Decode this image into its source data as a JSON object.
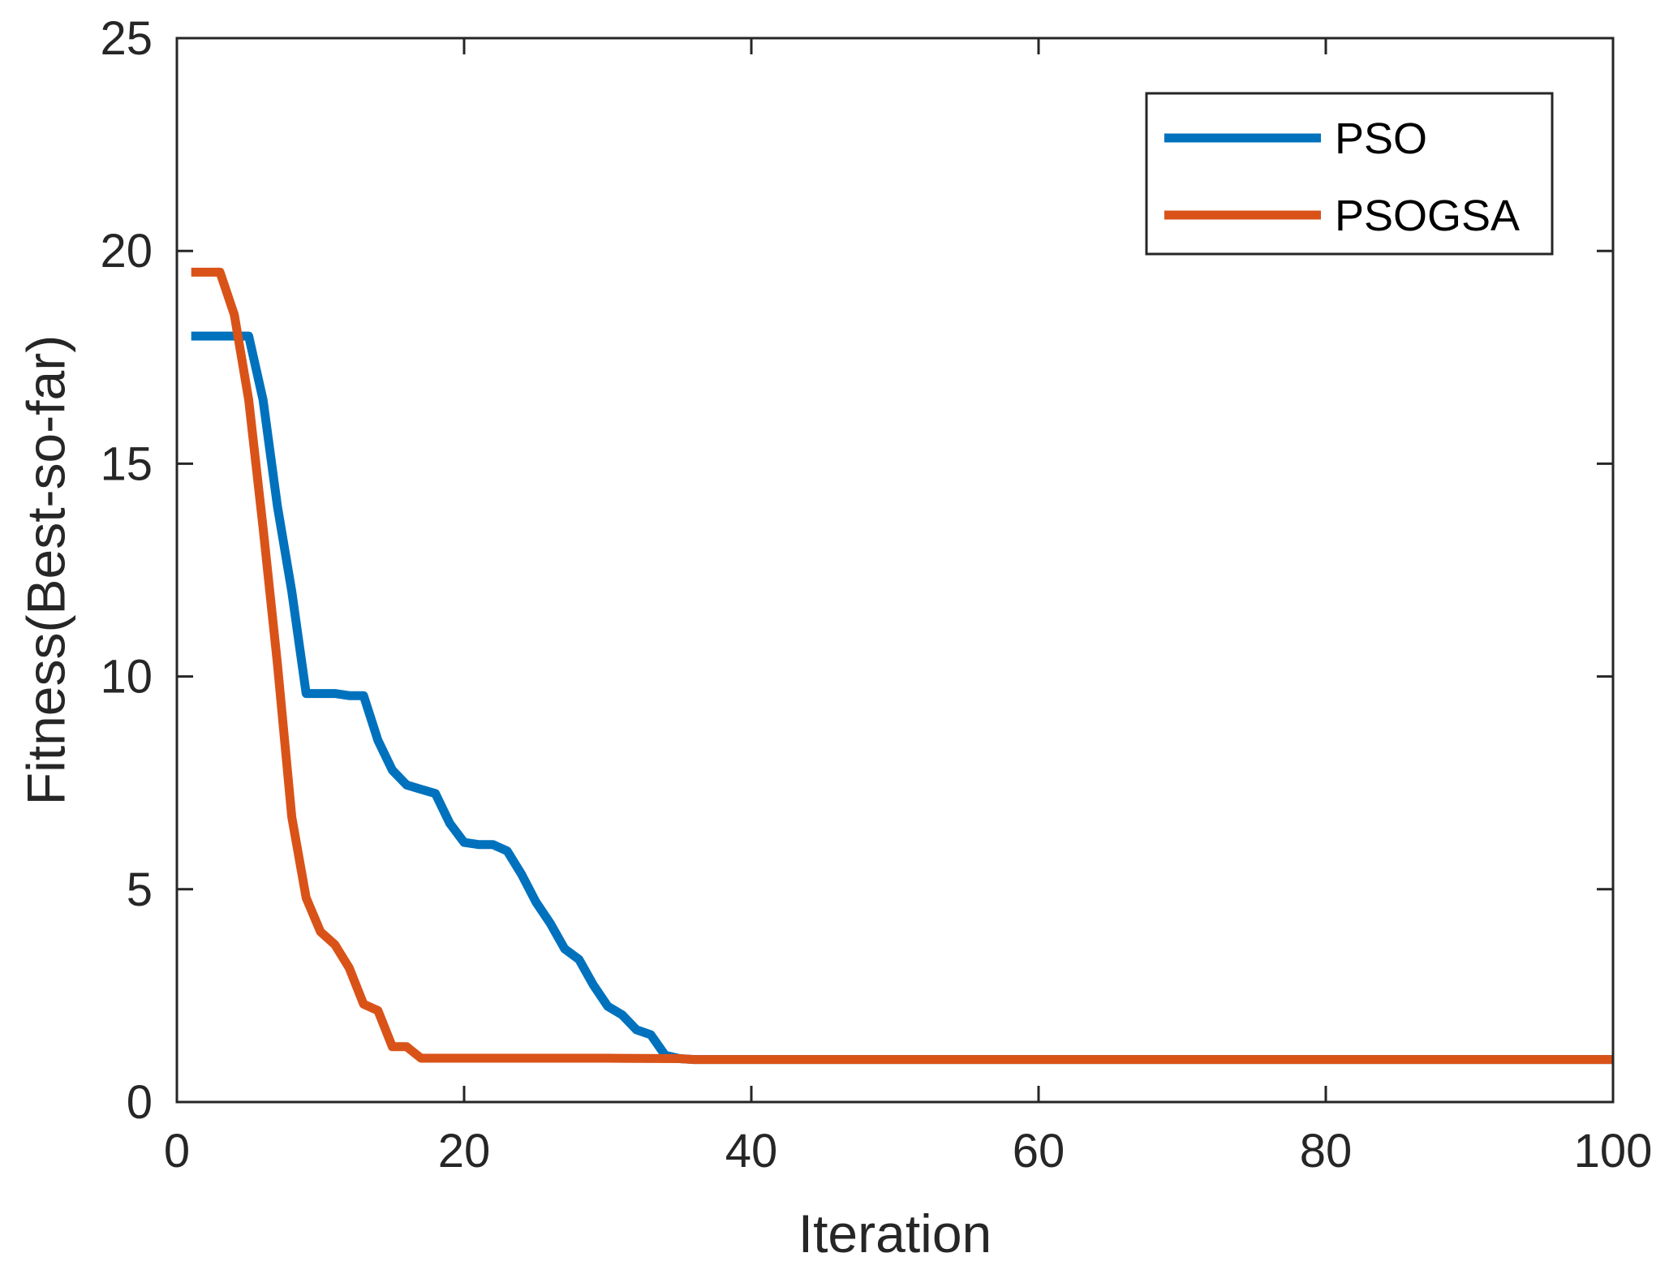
{
  "chart_data": {
    "type": "line",
    "title": "",
    "xlabel": "Iteration",
    "ylabel": "Fitness(Best-so-far)",
    "xlim": [
      0,
      100
    ],
    "ylim": [
      0,
      25
    ],
    "xticks": [
      0,
      20,
      40,
      60,
      80,
      100
    ],
    "yticks": [
      0,
      5,
      10,
      15,
      20,
      25
    ],
    "xtick_labels": [
      "0",
      "20",
      "40",
      "60",
      "80",
      "100"
    ],
    "ytick_labels": [
      "0",
      "5",
      "10",
      "15",
      "20",
      "25"
    ],
    "grid": false,
    "legend_position": "top-right",
    "series": [
      {
        "name": "PSO",
        "color": "#0072BD",
        "x": [
          1,
          2,
          3,
          4,
          5,
          6,
          7,
          8,
          9,
          10,
          11,
          12,
          13,
          14,
          15,
          16,
          17,
          18,
          19,
          20,
          21,
          22,
          23,
          24,
          25,
          26,
          27,
          28,
          29,
          30,
          31,
          32,
          33,
          34,
          35,
          36,
          37,
          38,
          39,
          40,
          45,
          50,
          55,
          60,
          65,
          70,
          75,
          80,
          85,
          90,
          95,
          100
        ],
        "y": [
          18,
          18,
          18,
          18,
          18,
          16.5,
          14,
          12,
          9.6,
          9.6,
          9.6,
          9.55,
          9.55,
          8.5,
          7.8,
          7.45,
          7.35,
          7.25,
          6.55,
          6.1,
          6.05,
          6.05,
          5.9,
          5.35,
          4.7,
          4.2,
          3.6,
          3.35,
          2.75,
          2.25,
          2.05,
          1.7,
          1.58,
          1.1,
          1.02,
          1.0,
          1.0,
          1.0,
          1.0,
          1.0,
          1.0,
          1.0,
          1.0,
          1.0,
          1.0,
          1.0,
          1.0,
          1.0,
          1.0,
          1.0,
          1.0,
          1.0
        ]
      },
      {
        "name": "PSOGSA",
        "color": "#D95319",
        "x": [
          1,
          2,
          3,
          4,
          5,
          6,
          7,
          8,
          9,
          10,
          11,
          12,
          13,
          14,
          15,
          16,
          17,
          18,
          19,
          20,
          25,
          30,
          35,
          36,
          40,
          45,
          50,
          55,
          60,
          65,
          70,
          75,
          80,
          85,
          90,
          95,
          100
        ],
        "y": [
          19.5,
          19.5,
          19.5,
          18.5,
          16.5,
          13.5,
          10.3,
          6.7,
          4.8,
          4.0,
          3.7,
          3.15,
          2.3,
          2.15,
          1.3,
          1.3,
          1.03,
          1.03,
          1.03,
          1.03,
          1.03,
          1.03,
          1.02,
          1.0,
          1.0,
          1.0,
          1.0,
          1.0,
          1.0,
          1.0,
          1.0,
          1.0,
          1.0,
          1.0,
          1.0,
          1.0,
          1.0
        ]
      }
    ]
  }
}
